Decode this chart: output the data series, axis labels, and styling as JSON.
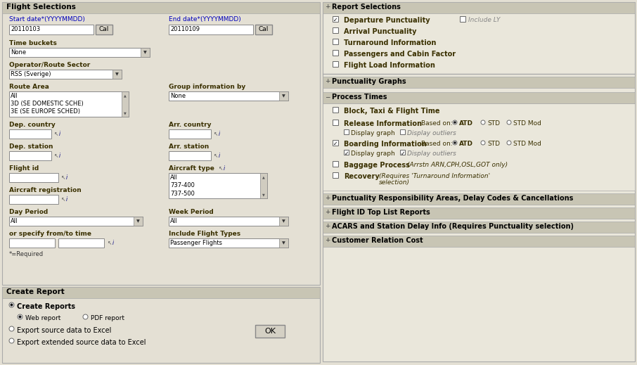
{
  "bg_color": "#e4e0d4",
  "left_panel_bg": "#e4e0d4",
  "right_panel_bg": "#eae7db",
  "section_header_bg": "#c8c5b4",
  "input_bg": "#ffffff",
  "border_color": "#999999",
  "label_color": "#3a3000",
  "blue_label_color": "#0000bb",
  "left_panel_title": "Flight Selections",
  "right_panel_title": "Report Selections",
  "start_date_label": "Start date*(YYYYMMDD)",
  "start_date_value": "20110103",
  "end_date_label": "End date*(YYYYMMDD)",
  "end_date_value": "20110109",
  "time_buckets_label": "Time buckets",
  "time_buckets_value": "None",
  "operator_label": "Operator/Route Sector",
  "operator_value": "RSS (Sverige)",
  "route_area_label": "Route Area",
  "route_area_items": [
    "All",
    "3D (SE DOMESTIC SCHE)",
    "3E (SE EUROPE SCHED)"
  ],
  "group_info_label": "Group information by",
  "group_info_value": "None",
  "dep_country_label": "Dep. country",
  "arr_country_label": "Arr. country",
  "dep_station_label": "Dep. station",
  "arr_station_label": "Arr. station",
  "flight_id_label": "Flight id",
  "aircraft_type_label": "Aircraft type",
  "aircraft_type_items": [
    "All",
    "737-400",
    "737-500"
  ],
  "aircraft_reg_label": "Aircraft registration",
  "day_period_label": "Day Period",
  "day_period_value": "All",
  "week_period_label": "Week Period",
  "week_period_value": "All",
  "from_to_label": "or specify from/to time",
  "include_flight_label": "Include Flight Types",
  "include_flight_value": "Passenger Flights",
  "required_note": "*=Required",
  "create_report_title": "Create Report",
  "report_selections_title": "Report Selections",
  "report_items": [
    {
      "checked": true,
      "label": "Departure Punctuality",
      "extra": "Include LY",
      "extra_checked": false
    },
    {
      "checked": false,
      "label": "Arrival Punctuality"
    },
    {
      "checked": false,
      "label": "Turnaround Information"
    },
    {
      "checked": false,
      "label": "Passengers and Cabin Factor"
    },
    {
      "checked": false,
      "label": "Flight Load Information"
    }
  ],
  "punctuality_graphs_title": "Punctuality Graphs",
  "process_times_title": "Process Times",
  "baggage_label": "Baggage Process",
  "baggage_note": "(Arrstn ARN,CPH,OSL,GOT only)",
  "recovery_label": "Recovery",
  "recovery_note": "(Requires 'Turnaround Information'",
  "recovery_note2": "selection)",
  "punct_resp_title": "Punctuality Responsibility Areas, Delay Codes & Cancellations",
  "flight_top_title": "Flight ID Top List Reports",
  "acars_title": "ACARS and Station Delay Info (Requires Punctuality selection)",
  "customer_title": "Customer Relation Cost"
}
